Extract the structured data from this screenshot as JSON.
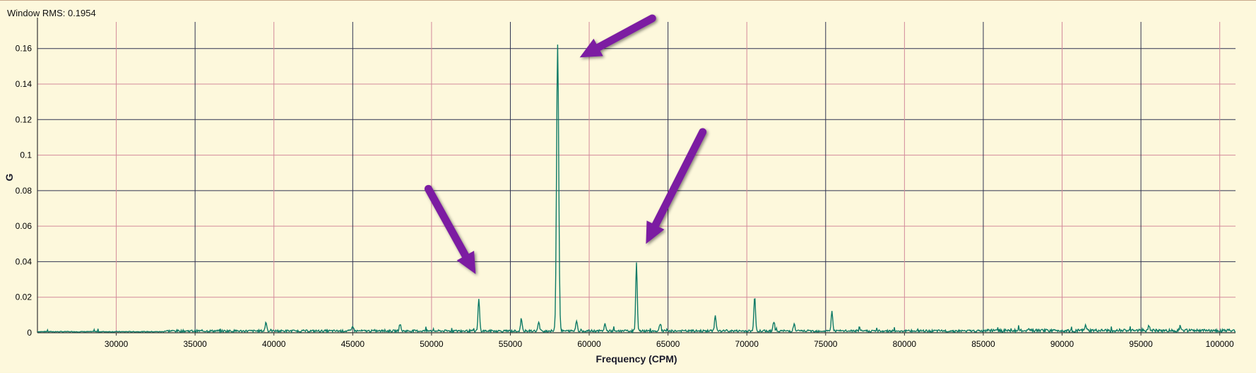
{
  "header": {
    "window_rms": "Window RMS: 0.1954"
  },
  "colors": {
    "background": "#fdf8dc",
    "grid_red": "#d38a9a",
    "grid_blue": "#2f3350",
    "trace": "#0d7a66",
    "arrow": "#7b1fa2"
  },
  "chart_data": {
    "type": "line",
    "title": "",
    "xlabel": "Frequency (CPM)",
    "ylabel": "G",
    "xlim": [
      25000,
      101000
    ],
    "ylim": [
      0,
      0.175
    ],
    "xticks": [
      30000,
      35000,
      40000,
      45000,
      50000,
      55000,
      60000,
      65000,
      70000,
      75000,
      80000,
      85000,
      90000,
      95000,
      100000
    ],
    "xtick_labels": [
      "30000",
      "35000",
      "40000",
      "45000",
      "50000",
      "55000",
      "60000",
      "65000",
      "70000",
      "75000",
      "80000",
      "85000",
      "90000",
      "95000",
      "100000"
    ],
    "yticks": [
      0,
      0.02,
      0.04,
      0.06,
      0.08,
      0.1,
      0.12,
      0.14,
      0.16
    ],
    "ytick_labels": [
      "0",
      "0.02",
      "0.04",
      "0.06",
      "0.08",
      "0.1",
      "0.12",
      "0.14",
      "0.16"
    ],
    "grid": true,
    "legend": "none",
    "baseline": 0.001,
    "peaks": [
      {
        "x": 39500,
        "y": 0.005
      },
      {
        "x": 45000,
        "y": 0.003
      },
      {
        "x": 48000,
        "y": 0.004
      },
      {
        "x": 53000,
        "y": 0.018
      },
      {
        "x": 55700,
        "y": 0.006
      },
      {
        "x": 56800,
        "y": 0.005
      },
      {
        "x": 58000,
        "y": 0.161
      },
      {
        "x": 59200,
        "y": 0.006
      },
      {
        "x": 61000,
        "y": 0.004
      },
      {
        "x": 63000,
        "y": 0.038
      },
      {
        "x": 64500,
        "y": 0.004
      },
      {
        "x": 68000,
        "y": 0.009
      },
      {
        "x": 70500,
        "y": 0.02
      },
      {
        "x": 71700,
        "y": 0.005
      },
      {
        "x": 73000,
        "y": 0.004
      },
      {
        "x": 75400,
        "y": 0.011
      },
      {
        "x": 91500,
        "y": 0.003
      },
      {
        "x": 95500,
        "y": 0.003
      },
      {
        "x": 97500,
        "y": 0.003
      }
    ],
    "annotations": [
      {
        "type": "arrow",
        "from": [
          49800,
          0.081
        ],
        "to": [
          52800,
          0.033
        ]
      },
      {
        "type": "arrow",
        "from": [
          64000,
          0.177
        ],
        "to": [
          59400,
          0.155
        ]
      },
      {
        "type": "arrow",
        "from": [
          67200,
          0.113
        ],
        "to": [
          63600,
          0.05
        ]
      }
    ]
  }
}
